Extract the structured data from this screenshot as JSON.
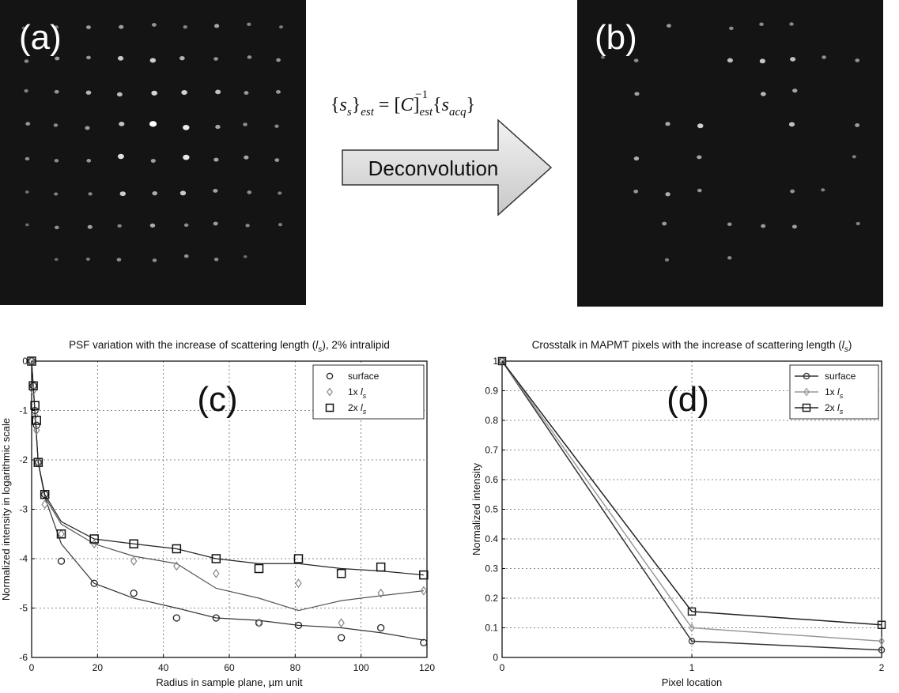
{
  "panels": [
    {
      "label": "(a)"
    },
    {
      "label": "(b)"
    }
  ],
  "equation": [
    "{",
    "s",
    "s",
    "}",
    "est",
    " = [",
    "C",
    "]",
    "est",
    "−1",
    " {",
    "s",
    "acq",
    "}"
  ],
  "arrow_label": "Deconvolution",
  "chart_data": [
    {
      "type": "scatter",
      "panel_label": "(c)",
      "title": [
        "PSF variation with the increase of scattering length (",
        "l",
        "s",
        "), 2% intralipid"
      ],
      "x_label": "Radius in sample plane, µm unit",
      "y_label": "Normalized intensity in logarithmic scale",
      "xlim": [
        0,
        120
      ],
      "xticks": [
        0,
        20,
        40,
        60,
        80,
        100,
        120
      ],
      "ylim": [
        -6,
        0
      ],
      "yticks": [
        0,
        -1,
        -2,
        -3,
        -4,
        -5,
        -6
      ],
      "grid": true,
      "legend": "upper right",
      "series": [
        {
          "name": [
            "surface"
          ],
          "marker": "circle",
          "color": "#222",
          "x": [
            0,
            0.5,
            1,
            1.5,
            2,
            4,
            9,
            19,
            31,
            44,
            56,
            69,
            81,
            94,
            106,
            119
          ],
          "values": [
            0,
            -0.5,
            -1,
            -1.3,
            -2.05,
            -2.7,
            -4.05,
            -4.5,
            -4.7,
            -5.2,
            -5.2,
            -5.3,
            -5.35,
            -5.6,
            -5.4,
            -5.7
          ]
        },
        {
          "name": [
            "1x ",
            "l",
            "s"
          ],
          "marker": "diamond",
          "color": "#888",
          "x": [
            0,
            0.5,
            1,
            1.5,
            2,
            4,
            9,
            19,
            31,
            44,
            56,
            69,
            81,
            94,
            106,
            119
          ],
          "values": [
            0,
            -0.6,
            -1.1,
            -1.4,
            -2.05,
            -2.9,
            -3.5,
            -3.7,
            -4.05,
            -4.15,
            -4.3,
            -5.3,
            -4.5,
            -5.3,
            -4.7,
            -4.65
          ]
        },
        {
          "name": [
            "2x ",
            "l",
            "s"
          ],
          "marker": "square",
          "color": "#111",
          "x": [
            0,
            0.5,
            1,
            1.5,
            2,
            4,
            9,
            19,
            31,
            44,
            56,
            69,
            81,
            94,
            106,
            119
          ],
          "values": [
            0,
            -0.5,
            -0.9,
            -1.2,
            -2.05,
            -2.7,
            -3.5,
            -3.6,
            -3.7,
            -3.8,
            -4.0,
            -4.2,
            -4.0,
            -4.3,
            -4.17,
            -4.33
          ]
        }
      ],
      "fits": [
        {
          "color": "#333",
          "x": [
            0,
            2,
            4,
            9,
            19,
            31,
            44,
            56,
            69,
            81,
            94,
            106,
            119
          ],
          "values": [
            0,
            -2.05,
            -2.75,
            -3.7,
            -4.5,
            -4.8,
            -5.0,
            -5.2,
            -5.25,
            -5.35,
            -5.4,
            -5.5,
            -5.65
          ]
        },
        {
          "color": "#555",
          "x": [
            0,
            2,
            4,
            9,
            19,
            31,
            44,
            56,
            69,
            81,
            94,
            106,
            119
          ],
          "values": [
            0,
            -2.05,
            -2.75,
            -3.3,
            -3.7,
            -3.95,
            -4.1,
            -4.6,
            -4.8,
            -5.05,
            -4.85,
            -4.75,
            -4.65
          ]
        },
        {
          "color": "#222",
          "x": [
            0,
            2,
            4,
            9,
            19,
            31,
            44,
            56,
            69,
            81,
            94,
            106,
            119
          ],
          "values": [
            0,
            -2.05,
            -2.7,
            -3.25,
            -3.6,
            -3.7,
            -3.8,
            -4.0,
            -4.1,
            -4.1,
            -4.2,
            -4.25,
            -4.33
          ]
        }
      ]
    },
    {
      "type": "line",
      "panel_label": "(d)",
      "title": [
        "Crosstalk in MAPMT pixels with the increase of scattering length (",
        "l",
        "s",
        ")"
      ],
      "x_label": "Pixel location",
      "y_label": "Normalized intensity",
      "xlim": [
        0,
        2
      ],
      "xticks": [
        0,
        1,
        2
      ],
      "ylim": [
        0,
        1
      ],
      "yticks": [
        0,
        0.1,
        0.2,
        0.3,
        0.4,
        0.5,
        0.6,
        0.7,
        0.8,
        0.9,
        1
      ],
      "grid": true,
      "legend": "upper right",
      "series": [
        {
          "name": [
            "surface"
          ],
          "marker": "circle",
          "color": "#333",
          "x": [
            0,
            1,
            2
          ],
          "values": [
            1,
            0.055,
            0.025
          ]
        },
        {
          "name": [
            "1x ",
            "l",
            "s"
          ],
          "marker": "diamond",
          "color": "#999",
          "x": [
            0,
            1,
            2
          ],
          "values": [
            1,
            0.1,
            0.055
          ]
        },
        {
          "name": [
            "2x ",
            "l",
            "s"
          ],
          "marker": "square",
          "color": "#222",
          "x": [
            0,
            1,
            2
          ],
          "values": [
            1,
            0.155,
            0.11
          ]
        }
      ]
    }
  ]
}
